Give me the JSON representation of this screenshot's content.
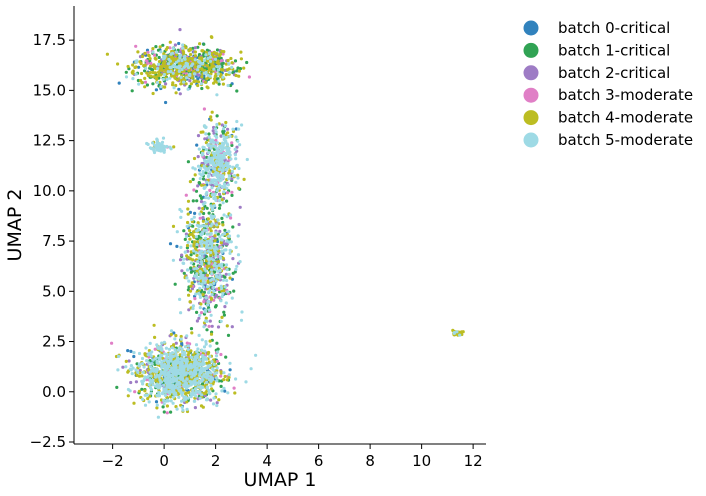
{
  "chart_data": {
    "type": "scatter",
    "title": "",
    "xlabel": "UMAP 1",
    "ylabel": "UMAP 2",
    "xlim": [
      -3.5,
      12.5
    ],
    "ylim": [
      -2.6,
      19.2
    ],
    "x_ticks": [
      -2,
      0,
      2,
      4,
      6,
      8,
      10,
      12
    ],
    "x_tick_labels": [
      "−2",
      "0",
      "2",
      "4",
      "6",
      "8",
      "10",
      "12"
    ],
    "y_ticks": [
      -2.5,
      0.0,
      2.5,
      5.0,
      7.5,
      10.0,
      12.5,
      15.0,
      17.5
    ],
    "y_tick_labels": [
      "−2.5",
      "0.0",
      "2.5",
      "5.0",
      "7.5",
      "10.0",
      "12.5",
      "15.0",
      "17.5"
    ],
    "grid": false,
    "legend_position": "outside-right",
    "series": [
      {
        "name": "batch 0-critical",
        "color": "#3182bd"
      },
      {
        "name": "batch 1-critical",
        "color": "#31a354"
      },
      {
        "name": "batch 2-critical",
        "color": "#9e7cc5"
      },
      {
        "name": "batch 3-moderate",
        "color": "#e07fc6"
      },
      {
        "name": "batch 4-moderate",
        "color": "#bcbd22"
      },
      {
        "name": "batch 5-moderate",
        "color": "#9edae5"
      }
    ],
    "clusters": [
      {
        "cx": 0.8,
        "cy": 16.2,
        "sx": 1.5,
        "sy": 0.8,
        "n": 900,
        "mix": [
          0.12,
          0.28,
          0.08,
          0.06,
          0.36,
          0.1
        ]
      },
      {
        "cx": 0.6,
        "cy": 0.9,
        "sx": 1.3,
        "sy": 1.2,
        "n": 1300,
        "mix": [
          0.06,
          0.12,
          0.05,
          0.04,
          0.28,
          0.45
        ]
      },
      {
        "cx": 1.7,
        "cy": 6.8,
        "sx": 0.8,
        "sy": 2.6,
        "n": 800,
        "mix": [
          0.07,
          0.24,
          0.12,
          0.05,
          0.22,
          0.3
        ]
      },
      {
        "cx": 2.1,
        "cy": 11.5,
        "sx": 0.6,
        "sy": 1.5,
        "n": 450,
        "mix": [
          0.04,
          0.1,
          0.1,
          0.05,
          0.16,
          0.55
        ]
      },
      {
        "cx": -0.2,
        "cy": 12.2,
        "sx": 0.3,
        "sy": 0.25,
        "n": 60,
        "mix": [
          0.02,
          0.03,
          0.02,
          0.02,
          0.06,
          0.85
        ]
      },
      {
        "cx": 11.4,
        "cy": 2.9,
        "sx": 0.15,
        "sy": 0.12,
        "n": 30,
        "mix": [
          0.0,
          0.0,
          0.0,
          0.0,
          0.8,
          0.2
        ]
      }
    ]
  }
}
